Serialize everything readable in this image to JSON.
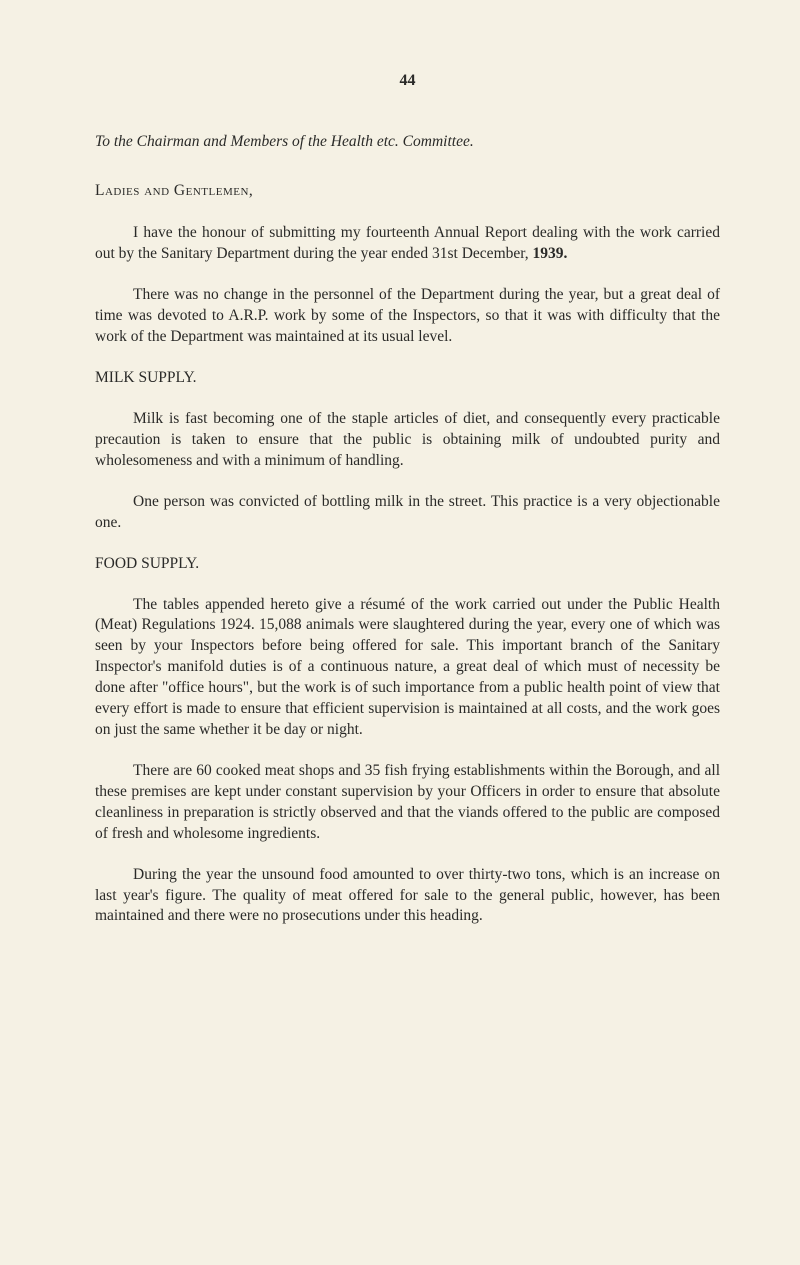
{
  "page_number": "44",
  "letter_heading": "To the Chairman and Members of the Health etc. Committee.",
  "salutation": "Ladies and Gentlemen,",
  "paragraphs": {
    "intro1_part1": "I have the honour of submitting my fourteenth Annual Report dealing with the work carried out by the Sanitary Department during the year ended 31st December, ",
    "intro1_year": "1939.",
    "intro2": "There was no change in the personnel of the Department during the year, but a great deal of time was devoted to A.R.P. work by some of the Inspectors, so that it was with difficulty that the work of the Department was maintained at its usual level."
  },
  "sections": {
    "milk": {
      "heading": "MILK SUPPLY.",
      "para1": "Milk is fast becoming one of the staple articles of diet, and consequently every practicable precaution is taken to ensure that the public is obtaining milk of undoubted purity and wholesomeness and with a minimum of handling.",
      "para2": "One person was convicted of bottling milk in the street. This practice is a very objectionable one."
    },
    "food": {
      "heading": "FOOD SUPPLY.",
      "para1": "The tables appended hereto give a résumé of the work carried out under the Public Health (Meat) Regulations 1924. 15,088 animals were slaughtered during the year, every one of which was seen by your Inspectors before being offered for sale. This important branch of the Sanitary Inspector's manifold duties is of a continuous nature, a great deal of which must of necessity be done after \"office hours\", but the work is of such importance from a public health point of view that every effort is made to ensure that efficient supervision is maintained at all costs, and the work goes on just the same whether it be day or night.",
      "para2": "There are 60 cooked meat shops and 35 fish frying establishments within the Borough, and all these premises are kept under constant supervision by your Officers in order to ensure that absolute cleanliness in preparation is strictly observed and that the viands offered to the public are composed of fresh and wholesome ingredients.",
      "para3": "During the year the unsound food amounted to over thirty-two tons, which is an increase on last year's figure. The quality of meat offered for sale to the general public, however, has been maintained and there were no prosecutions under this heading."
    }
  },
  "colors": {
    "background": "#f5f1e4",
    "text": "#2a2a28"
  },
  "typography": {
    "body_fontsize": 15.5,
    "page_number_fontsize": 16,
    "line_height": 1.35,
    "text_indent": 38
  }
}
